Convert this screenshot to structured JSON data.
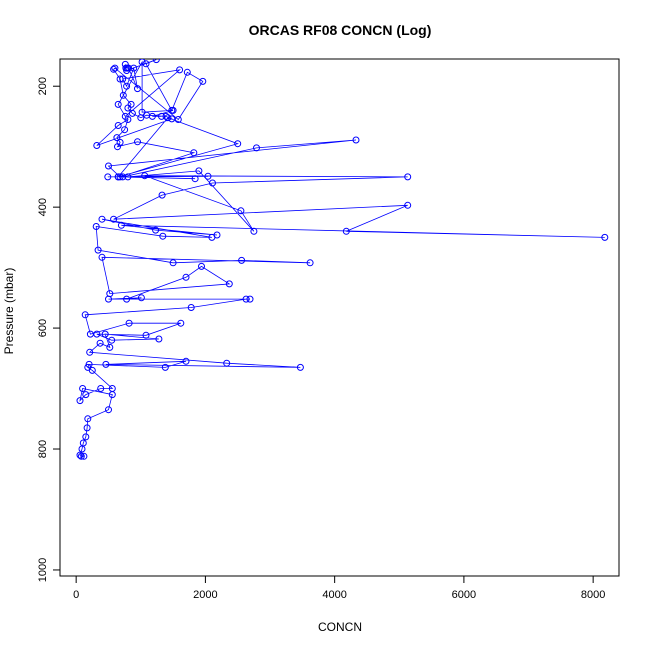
{
  "chart_data": {
    "type": "line",
    "title": "ORCAS RF08 CONCN (Log)",
    "xlabel": "CONCN",
    "ylabel": "Pressure (mbar)",
    "xlim": [
      -250,
      8400
    ],
    "ylim": [
      1010,
      155
    ],
    "y_reversed": true,
    "grid": false,
    "xticks": [
      0,
      2000,
      4000,
      6000,
      8000
    ],
    "yticks": [
      200,
      400,
      600,
      800,
      1000
    ],
    "marker": "open-circle",
    "line_color": "#0000ff",
    "series": [
      {
        "points": [
          [
            80,
            812
          ],
          [
            120,
            812
          ],
          [
            60,
            810
          ],
          [
            90,
            800
          ],
          [
            110,
            790
          ],
          [
            150,
            780
          ],
          [
            170,
            765
          ],
          [
            180,
            750
          ],
          [
            500,
            735
          ],
          [
            560,
            710
          ],
          [
            100,
            700
          ],
          [
            60,
            720
          ],
          [
            150,
            710
          ],
          [
            380,
            700
          ],
          [
            560,
            700
          ],
          [
            250,
            670
          ],
          [
            180,
            665
          ],
          [
            200,
            660
          ],
          [
            1380,
            665
          ],
          [
            1700,
            655
          ],
          [
            460,
            660
          ],
          [
            3470,
            665
          ],
          [
            2330,
            658
          ],
          [
            210,
            640
          ],
          [
            370,
            625
          ],
          [
            520,
            632
          ],
          [
            450,
            610
          ],
          [
            1280,
            618
          ],
          [
            550,
            620
          ],
          [
            320,
            610
          ],
          [
            1080,
            612
          ],
          [
            1620,
            592
          ],
          [
            820,
            592
          ],
          [
            220,
            610
          ],
          [
            140,
            578
          ],
          [
            1780,
            566
          ],
          [
            2630,
            552
          ],
          [
            2690,
            552
          ],
          [
            500,
            552
          ],
          [
            1010,
            550
          ],
          [
            780,
            552
          ],
          [
            1700,
            516
          ],
          [
            1940,
            498
          ],
          [
            2370,
            527
          ],
          [
            520,
            543
          ],
          [
            400,
            483
          ],
          [
            3620,
            492
          ],
          [
            2560,
            488
          ],
          [
            1500,
            492
          ],
          [
            340,
            471
          ],
          [
            310,
            432
          ],
          [
            1340,
            448
          ],
          [
            2100,
            450
          ],
          [
            400,
            420
          ],
          [
            1230,
            438
          ],
          [
            2180,
            446
          ],
          [
            700,
            430
          ],
          [
            8180,
            450
          ],
          [
            4180,
            440
          ],
          [
            5130,
            397
          ],
          [
            580,
            420
          ],
          [
            1330,
            380
          ],
          [
            2110,
            360
          ],
          [
            5130,
            350
          ],
          [
            1060,
            348
          ],
          [
            2550,
            406
          ],
          [
            2750,
            440
          ],
          [
            1900,
            340
          ],
          [
            800,
            350
          ],
          [
            490,
            350
          ],
          [
            2040,
            349
          ],
          [
            650,
            350
          ],
          [
            2500,
            295
          ],
          [
            1420,
            252
          ],
          [
            650,
            350
          ],
          [
            1840,
            353
          ],
          [
            720,
            350
          ],
          [
            2790,
            302
          ],
          [
            4330,
            289
          ],
          [
            500,
            332
          ],
          [
            680,
            350
          ],
          [
            1820,
            310
          ],
          [
            950,
            292
          ],
          [
            640,
            300
          ],
          [
            680,
            293
          ],
          [
            630,
            285
          ],
          [
            750,
            272
          ],
          [
            800,
            255
          ],
          [
            650,
            265
          ],
          [
            320,
            298
          ],
          [
            1480,
            254
          ],
          [
            1390,
            250
          ],
          [
            1090,
            248
          ],
          [
            1000,
            252
          ],
          [
            870,
            245
          ],
          [
            800,
            236
          ],
          [
            850,
            230
          ],
          [
            730,
            215
          ],
          [
            680,
            188
          ],
          [
            580,
            172
          ],
          [
            600,
            170
          ],
          [
            1580,
            255
          ],
          [
            1960,
            192
          ],
          [
            1720,
            177
          ],
          [
            1480,
            240
          ],
          [
            1080,
            163
          ],
          [
            1240,
            156
          ],
          [
            780,
            174
          ],
          [
            770,
            170
          ],
          [
            760,
            164
          ],
          [
            790,
            170
          ],
          [
            810,
            170
          ],
          [
            950,
            204
          ],
          [
            890,
            170
          ],
          [
            780,
            200
          ],
          [
            720,
            188
          ],
          [
            1600,
            173
          ],
          [
            760,
            250
          ],
          [
            650,
            230
          ],
          [
            1020,
            160
          ],
          [
            1020,
            243
          ],
          [
            1500,
            240
          ],
          [
            1180,
            250
          ],
          [
            1320,
            250
          ]
        ]
      }
    ]
  }
}
